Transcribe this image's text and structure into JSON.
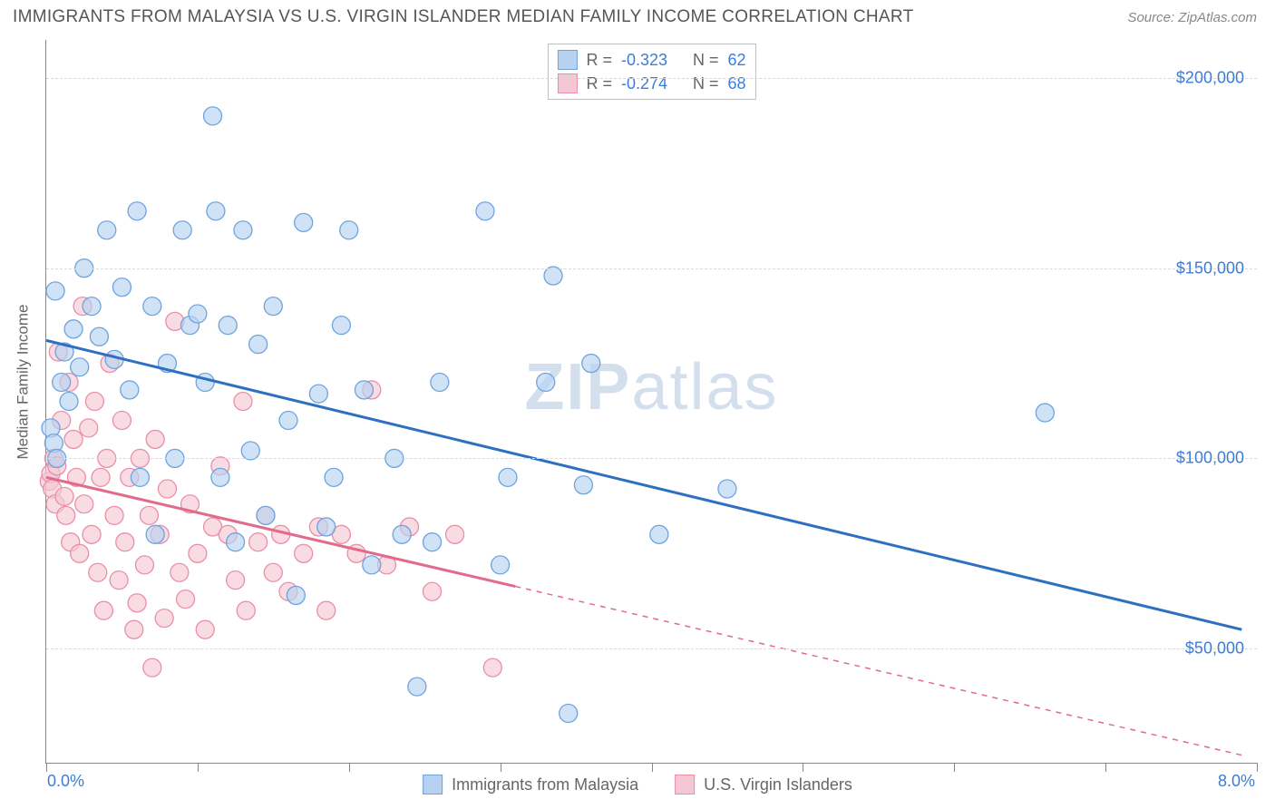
{
  "header": {
    "title": "IMMIGRANTS FROM MALAYSIA VS U.S. VIRGIN ISLANDER MEDIAN FAMILY INCOME CORRELATION CHART",
    "source": "Source: ZipAtlas.com"
  },
  "chart": {
    "type": "scatter",
    "ylabel": "Median Family Income",
    "xlim": [
      0,
      8
    ],
    "ylim": [
      20000,
      210000
    ],
    "x_tick_positions": [
      0,
      1,
      2,
      3,
      4,
      5,
      6,
      7,
      8
    ],
    "x_min_label": "0.0%",
    "x_max_label": "8.0%",
    "y_gridlines": [
      50000,
      100000,
      150000,
      200000
    ],
    "y_tick_labels": [
      "$50,000",
      "$100,000",
      "$150,000",
      "$200,000"
    ],
    "background_color": "#ffffff",
    "grid_color": "#d9d9d9",
    "axis_color": "#888888",
    "label_color": "#666666",
    "tick_label_color": "#3b7dd8",
    "watermark_text_bold": "ZIP",
    "watermark_text_rest": "atlas",
    "series": [
      {
        "key": "malaysia",
        "name": "Immigrants from Malaysia",
        "fill": "#b7d2f0",
        "stroke": "#6fa3dd",
        "line_color": "#2f6fc2",
        "r_value": "-0.323",
        "n_value": "62",
        "marker_r": 10,
        "regression": {
          "x1": 0,
          "y1": 131000,
          "x2": 7.9,
          "y2": 55000,
          "solid_until_x": 7.9
        },
        "points": [
          [
            0.03,
            108000
          ],
          [
            0.05,
            104000
          ],
          [
            0.07,
            100000
          ],
          [
            0.06,
            144000
          ],
          [
            0.1,
            120000
          ],
          [
            0.12,
            128000
          ],
          [
            0.15,
            115000
          ],
          [
            0.18,
            134000
          ],
          [
            0.25,
            150000
          ],
          [
            0.22,
            124000
          ],
          [
            0.3,
            140000
          ],
          [
            0.35,
            132000
          ],
          [
            0.4,
            160000
          ],
          [
            0.45,
            126000
          ],
          [
            0.5,
            145000
          ],
          [
            0.55,
            118000
          ],
          [
            0.6,
            165000
          ],
          [
            0.62,
            95000
          ],
          [
            0.7,
            140000
          ],
          [
            0.72,
            80000
          ],
          [
            0.8,
            125000
          ],
          [
            0.85,
            100000
          ],
          [
            0.9,
            160000
          ],
          [
            0.95,
            135000
          ],
          [
            1.0,
            138000
          ],
          [
            1.05,
            120000
          ],
          [
            1.1,
            190000
          ],
          [
            1.12,
            165000
          ],
          [
            1.15,
            95000
          ],
          [
            1.2,
            135000
          ],
          [
            1.25,
            78000
          ],
          [
            1.3,
            160000
          ],
          [
            1.35,
            102000
          ],
          [
            1.4,
            130000
          ],
          [
            1.45,
            85000
          ],
          [
            1.5,
            140000
          ],
          [
            1.6,
            110000
          ],
          [
            1.65,
            64000
          ],
          [
            1.7,
            162000
          ],
          [
            1.8,
            117000
          ],
          [
            1.85,
            82000
          ],
          [
            1.9,
            95000
          ],
          [
            1.95,
            135000
          ],
          [
            2.0,
            160000
          ],
          [
            2.1,
            118000
          ],
          [
            2.15,
            72000
          ],
          [
            2.3,
            100000
          ],
          [
            2.35,
            80000
          ],
          [
            2.45,
            40000
          ],
          [
            2.55,
            78000
          ],
          [
            2.6,
            120000
          ],
          [
            2.9,
            165000
          ],
          [
            3.0,
            72000
          ],
          [
            3.05,
            95000
          ],
          [
            3.3,
            120000
          ],
          [
            3.35,
            148000
          ],
          [
            3.45,
            33000
          ],
          [
            3.55,
            93000
          ],
          [
            3.6,
            125000
          ],
          [
            4.05,
            80000
          ],
          [
            4.5,
            92000
          ],
          [
            6.6,
            112000
          ]
        ]
      },
      {
        "key": "usvi",
        "name": "U.S. Virgin Islanders",
        "fill": "#f5c7d4",
        "stroke": "#e98fa8",
        "line_color": "#e26a8a",
        "r_value": "-0.274",
        "n_value": "68",
        "marker_r": 10,
        "regression": {
          "x1": 0,
          "y1": 95000,
          "x2": 7.9,
          "y2": 22000,
          "solid_until_x": 3.1
        },
        "points": [
          [
            0.02,
            94000
          ],
          [
            0.03,
            96000
          ],
          [
            0.04,
            92000
          ],
          [
            0.05,
            100000
          ],
          [
            0.06,
            88000
          ],
          [
            0.07,
            98000
          ],
          [
            0.08,
            128000
          ],
          [
            0.1,
            110000
          ],
          [
            0.12,
            90000
          ],
          [
            0.13,
            85000
          ],
          [
            0.15,
            120000
          ],
          [
            0.16,
            78000
          ],
          [
            0.18,
            105000
          ],
          [
            0.2,
            95000
          ],
          [
            0.22,
            75000
          ],
          [
            0.24,
            140000
          ],
          [
            0.25,
            88000
          ],
          [
            0.28,
            108000
          ],
          [
            0.3,
            80000
          ],
          [
            0.32,
            115000
          ],
          [
            0.34,
            70000
          ],
          [
            0.36,
            95000
          ],
          [
            0.38,
            60000
          ],
          [
            0.4,
            100000
          ],
          [
            0.42,
            125000
          ],
          [
            0.45,
            85000
          ],
          [
            0.48,
            68000
          ],
          [
            0.5,
            110000
          ],
          [
            0.52,
            78000
          ],
          [
            0.55,
            95000
          ],
          [
            0.58,
            55000
          ],
          [
            0.6,
            62000
          ],
          [
            0.62,
            100000
          ],
          [
            0.65,
            72000
          ],
          [
            0.68,
            85000
          ],
          [
            0.7,
            45000
          ],
          [
            0.72,
            105000
          ],
          [
            0.75,
            80000
          ],
          [
            0.78,
            58000
          ],
          [
            0.8,
            92000
          ],
          [
            0.85,
            136000
          ],
          [
            0.88,
            70000
          ],
          [
            0.92,
            63000
          ],
          [
            0.95,
            88000
          ],
          [
            1.0,
            75000
          ],
          [
            1.05,
            55000
          ],
          [
            1.1,
            82000
          ],
          [
            1.15,
            98000
          ],
          [
            1.2,
            80000
          ],
          [
            1.25,
            68000
          ],
          [
            1.3,
            115000
          ],
          [
            1.32,
            60000
          ],
          [
            1.4,
            78000
          ],
          [
            1.45,
            85000
          ],
          [
            1.5,
            70000
          ],
          [
            1.55,
            80000
          ],
          [
            1.6,
            65000
          ],
          [
            1.7,
            75000
          ],
          [
            1.8,
            82000
          ],
          [
            1.85,
            60000
          ],
          [
            1.95,
            80000
          ],
          [
            2.05,
            75000
          ],
          [
            2.15,
            118000
          ],
          [
            2.25,
            72000
          ],
          [
            2.4,
            82000
          ],
          [
            2.55,
            65000
          ],
          [
            2.7,
            80000
          ],
          [
            2.95,
            45000
          ]
        ]
      }
    ],
    "legend_top": {
      "r_label": "R =",
      "n_label": "N ="
    }
  }
}
